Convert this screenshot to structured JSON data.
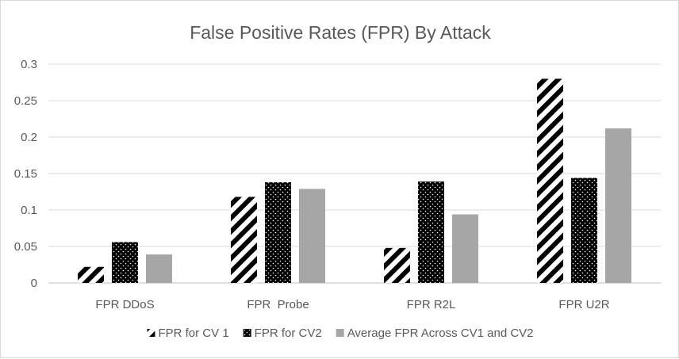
{
  "chart_data": {
    "type": "bar",
    "title": "False Positive Rates (FPR) By Attack",
    "xlabel": "",
    "ylabel": "",
    "categories": [
      "FPR DDoS",
      "FPR  Probe",
      "FPR R2L",
      "FPR U2R"
    ],
    "series": [
      {
        "name": "FPR for CV 1",
        "values": [
          0.022,
          0.118,
          0.048,
          0.28
        ],
        "pattern": "diagonal-stripes",
        "color": "#000000"
      },
      {
        "name": "FPR for CV2",
        "values": [
          0.056,
          0.138,
          0.139,
          0.144
        ],
        "pattern": "dots-on-black",
        "color": "#000000"
      },
      {
        "name": "Average FPR Across CV1 and CV2",
        "values": [
          0.039,
          0.129,
          0.094,
          0.212
        ],
        "pattern": "solid",
        "color": "#a6a6a6"
      }
    ],
    "ylim": [
      0,
      0.3
    ],
    "yticks": [
      "0",
      "0.05",
      "0.1",
      "0.15",
      "0.2",
      "0.25",
      "0.3"
    ],
    "grid": true,
    "legend_position": "bottom"
  }
}
